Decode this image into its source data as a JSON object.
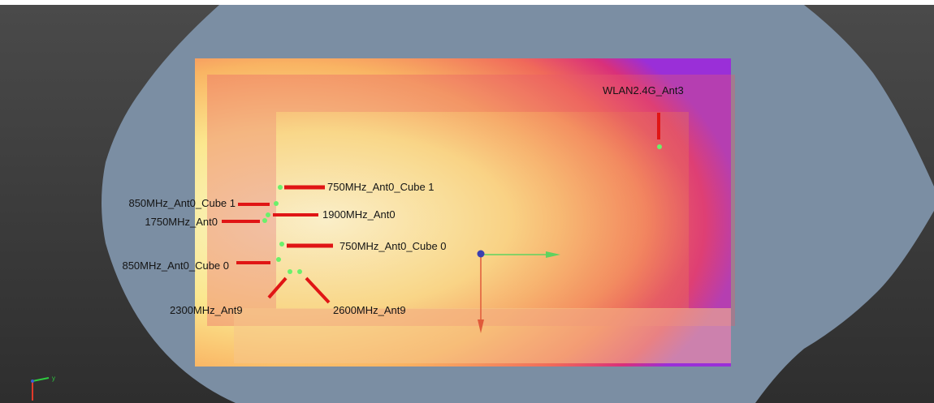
{
  "viewport": {
    "background_color": "#3e3e3e",
    "body_color": "#7b8ea3",
    "heatmap_colors": [
      "#f7f6c8",
      "#fbe78e",
      "#f9b463",
      "#f06a5a",
      "#d9307a",
      "#9a2fd8"
    ]
  },
  "probes": [
    {
      "name": "WLAN2.4G_Ant3"
    },
    {
      "name": "750MHz_Ant0_Cube 1"
    },
    {
      "name": "850MHz_Ant0_Cube 1"
    },
    {
      "name": "1900MHz_Ant0"
    },
    {
      "name": "1750MHz_Ant0"
    },
    {
      "name": "750MHz_Ant0_Cube 0"
    },
    {
      "name": "850MHz_Ant0_Cube 0"
    },
    {
      "name": "2300MHz_Ant9"
    },
    {
      "name": "2600MHz_Ant9"
    }
  ],
  "gizmo": {
    "x_color": "#5fd35f",
    "y_color": "#e05a3a",
    "origin_color": "#3b3fb0"
  },
  "orientation_axes": {
    "y_label": "y"
  }
}
